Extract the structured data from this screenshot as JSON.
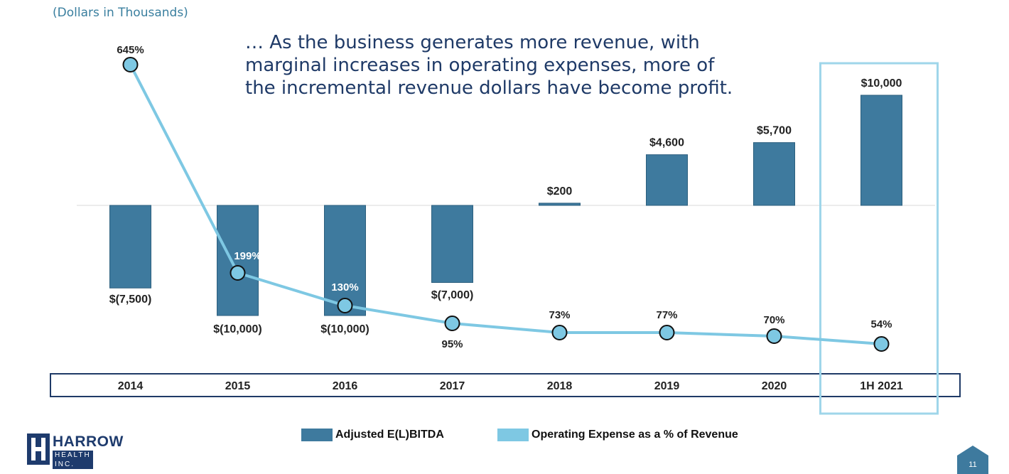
{
  "units_note": "(Dollars in Thousands)",
  "headline": [
    "… As the business generates more revenue, with",
    "marginal increases in operating expenses, more of",
    "the incremental revenue dollars have become profit."
  ],
  "colors": {
    "bar": "#3e7a9e",
    "line": "#7ec8e3",
    "highlight_box": "#9fd6ea",
    "axis_box": "#1f3a67",
    "brand": "#1e3b6d"
  },
  "chart_data": {
    "type": "bar",
    "categories": [
      "2014",
      "2015",
      "2016",
      "2017",
      "2018",
      "2019",
      "2020",
      "1H 2021"
    ],
    "highlighted_category": "1H 2021",
    "ylim": [
      -10000,
      10000
    ],
    "series": [
      {
        "name": "Adjusted E(L)BITDA",
        "type": "bar",
        "axis": "left",
        "values": [
          -7500,
          -10000,
          -10000,
          -7000,
          200,
          4600,
          5700,
          10000
        ],
        "labels": [
          "$(7,500)",
          "$(10,000)",
          "$(10,000)",
          "$(7,000)",
          "$200",
          "$4,600",
          "$5,700",
          "$10,000"
        ]
      },
      {
        "name": "Operating Expense as a % of Revenue",
        "type": "line",
        "axis": "right",
        "values": [
          645,
          199,
          130,
          95,
          73,
          77,
          70,
          54
        ],
        "labels": [
          "645%",
          "199%",
          "130%",
          "95%",
          "73%",
          "77%",
          "70%",
          "54%"
        ]
      }
    ],
    "legend_position": "bottom"
  },
  "logo": {
    "top": "HARROW",
    "bottom": "HEALTH INC."
  },
  "page_number": "11"
}
